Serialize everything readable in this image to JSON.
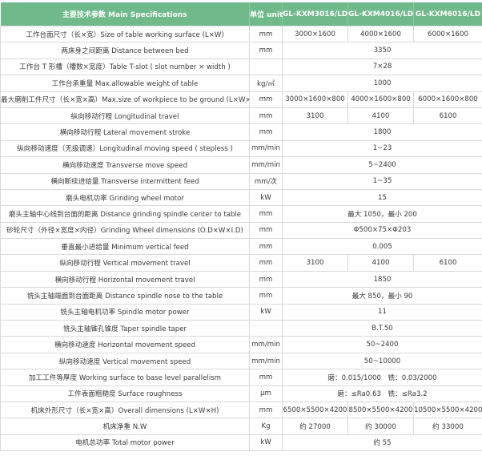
{
  "header": {
    "spec": "主要技术参数 Main Specifications",
    "unit": "单位 unit",
    "models": [
      "GL-KXM3016/LD",
      "GL-KXM4016/LD",
      "GL-KXM6016/LD"
    ]
  },
  "accent_color": "#6fb98b",
  "rows": [
    {
      "label": "工作台面尺寸（长×宽）Size of table working surface (L×W)",
      "unit": "mm",
      "values": [
        "3000×1600",
        "4000×1600",
        "6000×1600"
      ]
    },
    {
      "label": "两床身之间距离 Distance between bed",
      "unit": "mm",
      "values": [
        "3350"
      ]
    },
    {
      "label": "工作台 T 形槽（槽数×宽度）Table T-slot ( slot number × width )",
      "unit": "",
      "values": [
        "7×28"
      ]
    },
    {
      "label": "工作台承重量 Max.allowable weight of table",
      "unit": "kg/㎡",
      "values": [
        "1000"
      ]
    },
    {
      "label": "最大磨削工件尺寸（长×宽×高）Max.size of workpiece to be ground (L×W×H)",
      "unit": "mm",
      "values": [
        "3000×1600×800",
        "4000×1600×800",
        "6000×1600×800"
      ]
    },
    {
      "label": "纵向移动行程 Longitudinal travel",
      "unit": "mm",
      "values": [
        "3100",
        "4100",
        "6100"
      ]
    },
    {
      "label": "横向移动行程 Lateral movement stroke",
      "unit": "mm",
      "values": [
        "1800"
      ]
    },
    {
      "label": "纵向移动速度（无级调速）Longitudinal moving speed ( stepless )",
      "unit": "mm/min",
      "values": [
        "1~23"
      ]
    },
    {
      "label": "横向移动速度 Transverse move speed",
      "unit": "mm/min",
      "values": [
        "5~2400"
      ]
    },
    {
      "label": "横向断续进给量 Transverse intermittent feed",
      "unit": "mm/次",
      "values": [
        "1~35"
      ]
    },
    {
      "label": "磨头电机功率 Grinding wheel motor",
      "unit": "kW",
      "values": [
        "15"
      ]
    },
    {
      "label": "磨头主轴中心线到台面的距离 Distance grinding spindle center to table",
      "unit": "mm",
      "values": [
        "最大 1050，最小 200"
      ]
    },
    {
      "label": "砂轮尺寸（外径×宽度×内径）Grinding Wheel dimensions (O.D×W×I.D)",
      "unit": "mm",
      "values": [
        "Φ500×75×Φ203"
      ]
    },
    {
      "label": "垂直最小进给量 Minimum vertical feed",
      "unit": "mm",
      "values": [
        "0.005"
      ]
    },
    {
      "label": "纵向移动行程 Vertical movement travel",
      "unit": "mm",
      "values": [
        "3100",
        "4100",
        "6100"
      ]
    },
    {
      "label": "横向移动行程 Horizontal movement travel",
      "unit": "mm",
      "values": [
        "1850"
      ]
    },
    {
      "label": "铣头主轴端面到台面距离 Distance spindle nose to the table",
      "unit": "mm",
      "values": [
        "最大 850，最小 90"
      ]
    },
    {
      "label": "铣头主轴电机功率 Spindle motor power",
      "unit": "kW",
      "values": [
        "11"
      ]
    },
    {
      "label": "铣头主轴锥孔锥度 Taper spindle taper",
      "unit": "",
      "values": [
        "B.T.50"
      ]
    },
    {
      "label": "横向移动速度 Horizontal movement speed",
      "unit": "mm/min",
      "values": [
        "50~2400"
      ]
    },
    {
      "label": "纵向移动速度 Vertical movement speed",
      "unit": "mm/min",
      "values": [
        "50~10000"
      ]
    },
    {
      "label": "加工工件等厚度 Working surface to base level parallelism",
      "unit": "mm",
      "values": [
        "磨：0.015/1000　铣：0.03/2000"
      ]
    },
    {
      "label": "工件表面粗糙度 Surface roughness",
      "unit": "μm",
      "values": [
        "磨：≤Ra0.63　铣：≤Ra3.2"
      ]
    },
    {
      "label": "机床外形尺寸（长×宽×高）Overall dimensions (L×W×H)",
      "unit": "mm",
      "values": [
        "6500×5500×4200",
        "8500×5500×4200",
        "10500×5500×4200"
      ]
    },
    {
      "label": "机床净重 N.W",
      "unit": "Kg",
      "values": [
        "约 27000",
        "约 30000",
        "约 33000"
      ]
    },
    {
      "label": "电机总功率 Total motor power",
      "unit": "kW",
      "values": [
        "约 55"
      ]
    }
  ]
}
